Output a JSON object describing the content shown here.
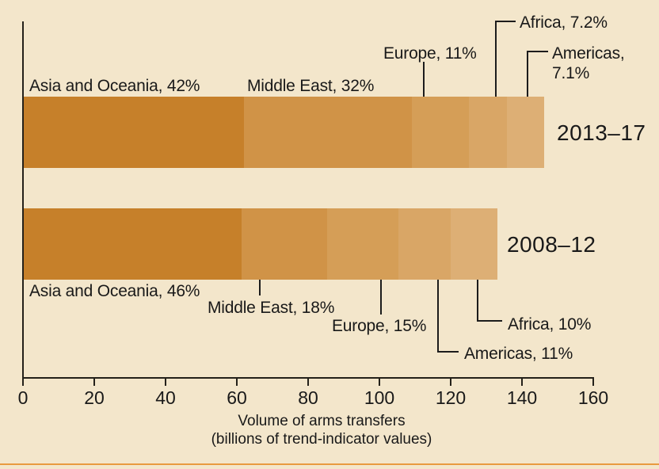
{
  "chart_data": {
    "type": "bar",
    "subtype": "horizontal-stacked",
    "xlabel": "Volume of arms transfers",
    "xlabel_sub": "(billions of trend-indicator values)",
    "x_axis": {
      "min": 0,
      "max": 160,
      "tick_step": 20,
      "ticks": [
        0,
        20,
        40,
        60,
        80,
        100,
        120,
        140,
        160
      ]
    },
    "legend": "none (direct segment labels with leader lines)",
    "segment_palette": [
      "#c6802a",
      "#d09347",
      "#d59e57",
      "#d9a666",
      "#ddaf75"
    ],
    "background_color": "#f3e6cb",
    "axis_color": "#24211a",
    "text_color": "#191919",
    "bottom_rule_color": "#e89a3f",
    "bars": [
      {
        "period": "2013–17",
        "total_billions": 147,
        "segments": [
          {
            "region": "Asia and Oceania",
            "pct": 42,
            "label": "Asia and Oceania, 42%"
          },
          {
            "region": "Middle East",
            "pct": 32,
            "label": "Middle East, 32%"
          },
          {
            "region": "Europe",
            "pct": 11,
            "label": "Europe, 11%"
          },
          {
            "region": "Africa",
            "pct": 7.2,
            "label": "Africa, 7.2%"
          },
          {
            "region": "Americas",
            "pct": 7.1,
            "label": "Americas, 7.1%"
          }
        ]
      },
      {
        "period": "2008–12",
        "total_billions": 133,
        "segments": [
          {
            "region": "Asia and Oceania",
            "pct": 46,
            "label": "Asia and Oceania, 46%"
          },
          {
            "region": "Middle East",
            "pct": 18,
            "label": "Middle East, 18%"
          },
          {
            "region": "Europe",
            "pct": 15,
            "label": "Europe, 15%"
          },
          {
            "region": "Americas",
            "pct": 11,
            "label": "Americas, 11%"
          },
          {
            "region": "Africa",
            "pct": 10,
            "label": "Africa, 10%"
          }
        ]
      }
    ]
  }
}
